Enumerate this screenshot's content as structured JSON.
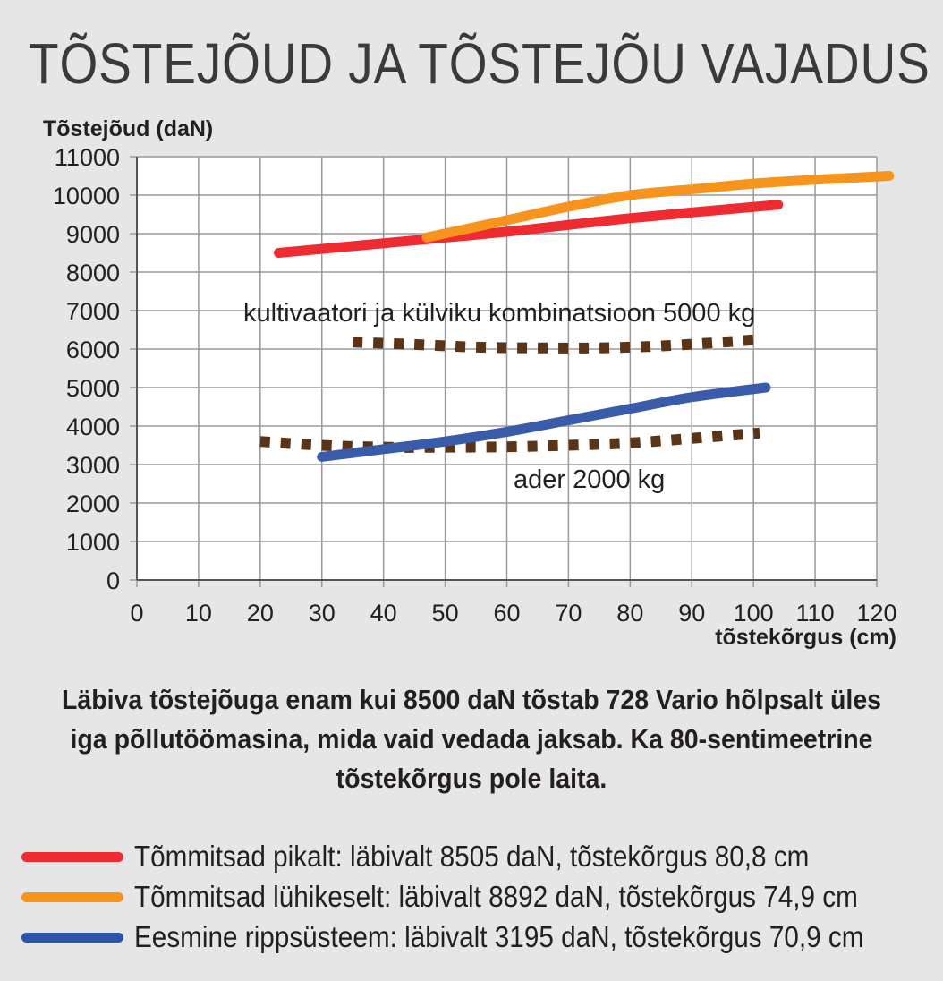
{
  "title": "TÕSTEJÕUD JA TÕSTEJÕU VAJADUS",
  "caption_lines": [
    "Läbiva tõstejõuga enam kui 8500 daN tõstab 728 Vario hõlpsalt üles",
    "iga põllutöömasina, mida vaid vedada jaksab. Ka 80-sentimeetrine",
    "tõstekõrgus pole laita."
  ],
  "legend": [
    {
      "label": "Tõmmitsad pikalt: läbivalt 8505 daN, tõstekõrgus 80,8 cm",
      "color": "#ee2b31"
    },
    {
      "label": "Tõmmitsad lühikeselt: läbivalt 8892 daN, tõstekõrgus 74,9 cm",
      "color": "#f7941d"
    },
    {
      "label": "Eesmine rippsüsteem: läbivalt 3195 daN, tõstekõrgus 70,9 cm",
      "color": "#2e55a5"
    }
  ],
  "chart_data": {
    "type": "line",
    "ylabel": "Tõstejõud (daN)",
    "xlabel": "tõstekõrgus (cm)",
    "xlim": [
      0,
      120
    ],
    "ylim": [
      0,
      11000
    ],
    "x_ticks": [
      "0",
      "10",
      "20",
      "30",
      "40",
      "50",
      "60",
      "70",
      "80",
      "90",
      "100",
      "110",
      "120"
    ],
    "y_ticks": [
      "0",
      "1000",
      "2000",
      "3000",
      "4000",
      "5000",
      "6000",
      "7000",
      "8000",
      "9000",
      "10000",
      "11000"
    ],
    "grid": true,
    "series": [
      {
        "name": "Tõmmitsad pikalt",
        "color": "#ee2b31",
        "style": "solid",
        "points": [
          [
            23,
            8500
          ],
          [
            40,
            8750
          ],
          [
            60,
            9050
          ],
          [
            80,
            9400
          ],
          [
            104,
            9750
          ]
        ]
      },
      {
        "name": "Tõmmitsad lühikeselt",
        "color": "#f7941d",
        "style": "solid",
        "points": [
          [
            47,
            8900
          ],
          [
            60,
            9350
          ],
          [
            70,
            9700
          ],
          [
            80,
            10000
          ],
          [
            90,
            10150
          ],
          [
            100,
            10300
          ],
          [
            110,
            10400
          ],
          [
            122,
            10500
          ]
        ]
      },
      {
        "name": "Eesmine rippsüsteem",
        "color": "#3a5ba9",
        "style": "solid",
        "points": [
          [
            30,
            3200
          ],
          [
            40,
            3400
          ],
          [
            50,
            3600
          ],
          [
            60,
            3850
          ],
          [
            70,
            4150
          ],
          [
            80,
            4450
          ],
          [
            90,
            4750
          ],
          [
            102,
            5000
          ]
        ]
      },
      {
        "name": "kultivaatori ja külviku kombinatsioon 5000 kg",
        "color": "#5a3417",
        "style": "dotted",
        "points": [
          [
            35,
            6180
          ],
          [
            45,
            6120
          ],
          [
            55,
            6050
          ],
          [
            65,
            6030
          ],
          [
            75,
            6030
          ],
          [
            85,
            6080
          ],
          [
            95,
            6180
          ],
          [
            101,
            6250
          ]
        ]
      },
      {
        "name": "ader 2000 kg",
        "color": "#5a3417",
        "style": "dotted",
        "points": [
          [
            20,
            3600
          ],
          [
            30,
            3500
          ],
          [
            40,
            3450
          ],
          [
            50,
            3450
          ],
          [
            60,
            3460
          ],
          [
            70,
            3500
          ],
          [
            80,
            3560
          ],
          [
            90,
            3680
          ],
          [
            101,
            3820
          ]
        ]
      }
    ],
    "annotations": [
      {
        "text": "kultivaatori ja külviku kombinatsioon 5000 kg"
      },
      {
        "text": "ader 2000 kg"
      }
    ]
  }
}
